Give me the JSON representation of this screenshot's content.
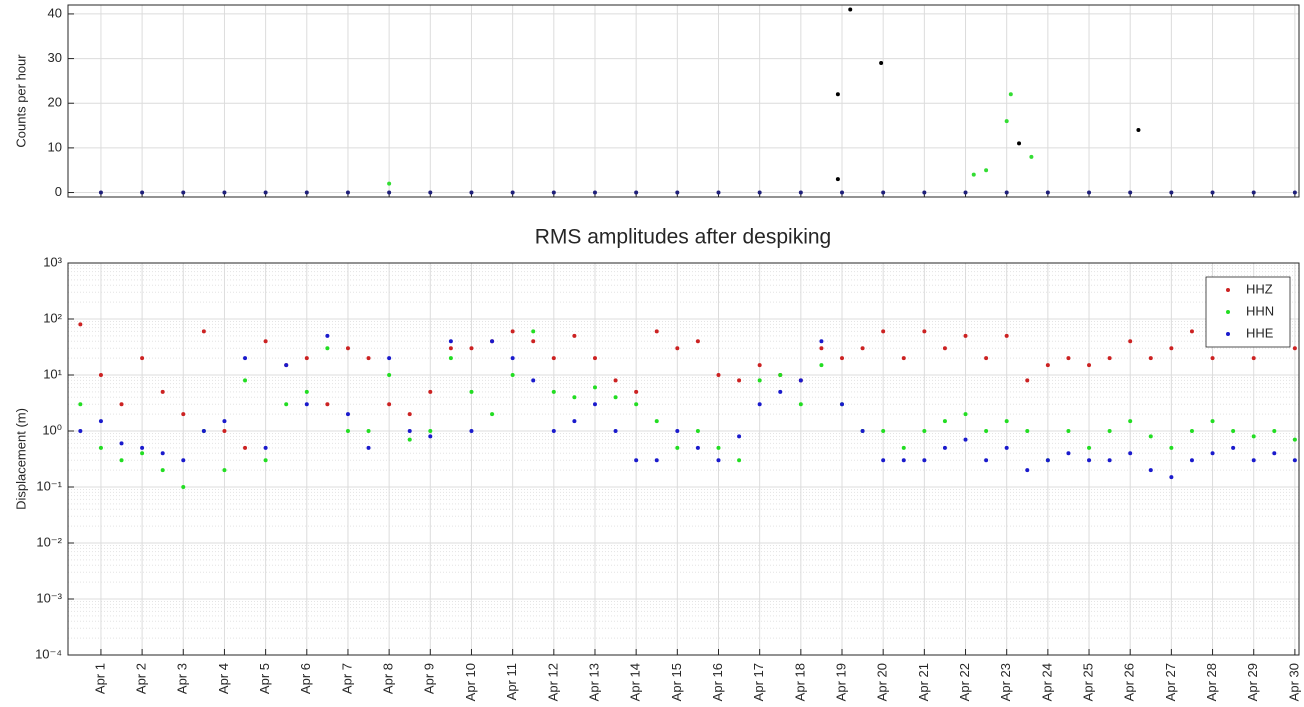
{
  "chart_data": [
    {
      "type": "scatter",
      "ylabel": "Counts per hour",
      "xlim": [
        0.2,
        30.1
      ],
      "ylim": [
        -1,
        42
      ],
      "yticks": [
        0,
        10,
        20,
        30,
        40
      ],
      "grid": true,
      "xticks": [
        1,
        2,
        3,
        4,
        5,
        6,
        7,
        8,
        9,
        10,
        11,
        12,
        13,
        14,
        15,
        16,
        17,
        18,
        19,
        20,
        21,
        22,
        23,
        24,
        25,
        26,
        27,
        28,
        29,
        30
      ],
      "series": [
        {
          "color": "#1f1f7a",
          "x": [
            1,
            2,
            3,
            4,
            5,
            6,
            7,
            8,
            9,
            10,
            11,
            12,
            13,
            14,
            15,
            16,
            17,
            18,
            19,
            20,
            21,
            22,
            23,
            24,
            25,
            26,
            27,
            28,
            29,
            30
          ],
          "values": [
            0,
            0,
            0,
            0,
            0,
            0,
            0,
            0,
            0,
            0,
            0,
            0,
            0,
            0,
            0,
            0,
            0,
            0,
            0,
            0,
            0,
            0,
            0,
            0,
            0,
            0,
            0,
            0,
            0,
            0
          ]
        },
        {
          "color": "#000000",
          "x": [
            18.9,
            19.2,
            19.95,
            26.2,
            23.3,
            18.9
          ],
          "values": [
            22,
            41,
            29,
            14,
            11,
            3
          ]
        },
        {
          "color": "#33dd33",
          "x": [
            23.1,
            23.0,
            22.5,
            23.6,
            22.2,
            8.0
          ],
          "values": [
            22,
            16,
            5,
            8,
            4,
            2
          ]
        }
      ]
    },
    {
      "type": "scatter",
      "title": "RMS amplitudes after despiking",
      "ylabel": "Displacement (m)",
      "log": true,
      "grid": true,
      "minor_grid": true,
      "legend": "upper right",
      "xlim": [
        0.2,
        30.1
      ],
      "ylim": [
        0.0001,
        1000
      ],
      "yticks": [
        {
          "value": 0.0001,
          "label": "10⁻⁴"
        },
        {
          "value": 0.001,
          "label": "10⁻³"
        },
        {
          "value": 0.01,
          "label": "10⁻²"
        },
        {
          "value": 0.1,
          "label": "10⁻¹"
        },
        {
          "value": 1,
          "label": "10⁰"
        },
        {
          "value": 10,
          "label": "10¹"
        },
        {
          "value": 100,
          "label": "10²"
        },
        {
          "value": 1000,
          "label": "10³"
        }
      ],
      "xticks": [
        {
          "value": 1,
          "label": "Apr 1"
        },
        {
          "value": 2,
          "label": "Apr 2"
        },
        {
          "value": 3,
          "label": "Apr 3"
        },
        {
          "value": 4,
          "label": "Apr 4"
        },
        {
          "value": 5,
          "label": "Apr 5"
        },
        {
          "value": 6,
          "label": "Apr 6"
        },
        {
          "value": 7,
          "label": "Apr 7"
        },
        {
          "value": 8,
          "label": "Apr 8"
        },
        {
          "value": 9,
          "label": "Apr 9"
        },
        {
          "value": 10,
          "label": "Apr 10"
        },
        {
          "value": 11,
          "label": "Apr 11"
        },
        {
          "value": 12,
          "label": "Apr 12"
        },
        {
          "value": 13,
          "label": "Apr 13"
        },
        {
          "value": 14,
          "label": "Apr 14"
        },
        {
          "value": 15,
          "label": "Apr 15"
        },
        {
          "value": 16,
          "label": "Apr 16"
        },
        {
          "value": 17,
          "label": "Apr 17"
        },
        {
          "value": 18,
          "label": "Apr 18"
        },
        {
          "value": 19,
          "label": "Apr 19"
        },
        {
          "value": 20,
          "label": "Apr 20"
        },
        {
          "value": 21,
          "label": "Apr 21"
        },
        {
          "value": 22,
          "label": "Apr 22"
        },
        {
          "value": 23,
          "label": "Apr 23"
        },
        {
          "value": 24,
          "label": "Apr 24"
        },
        {
          "value": 25,
          "label": "Apr 25"
        },
        {
          "value": 26,
          "label": "Apr 26"
        },
        {
          "value": 27,
          "label": "Apr 27"
        },
        {
          "value": 28,
          "label": "Apr 28"
        },
        {
          "value": 29,
          "label": "Apr 29"
        },
        {
          "value": 30,
          "label": "Apr 30"
        }
      ],
      "x": [
        0.5,
        1,
        1.5,
        2,
        2.5,
        3,
        3.5,
        4,
        4.5,
        5,
        5.5,
        6,
        6.5,
        7,
        7.5,
        8,
        8.5,
        9,
        9.5,
        10,
        10.5,
        11,
        11.5,
        12,
        12.5,
        13,
        13.5,
        14,
        14.5,
        15,
        15.5,
        16,
        16.5,
        17,
        17.5,
        18,
        18.5,
        19,
        19.5,
        20,
        20.5,
        21,
        21.5,
        22,
        22.5,
        23,
        23.5,
        24,
        24.5,
        25,
        25.5,
        26,
        26.5,
        27,
        27.5,
        28,
        28.5,
        29,
        29.5,
        30
      ],
      "series": [
        {
          "name": "HHZ",
          "color": "#cc2222",
          "values": [
            80,
            10,
            3,
            20,
            5,
            2,
            60,
            1,
            0.5,
            40,
            15,
            20,
            3,
            30,
            20,
            3,
            2,
            5,
            30,
            30,
            40,
            60,
            40,
            20,
            50,
            20,
            8,
            5,
            60,
            30,
            40,
            10,
            8,
            15,
            10,
            8,
            30,
            20,
            30,
            60,
            20,
            60,
            30,
            50,
            20,
            50,
            8,
            15,
            20,
            15,
            20,
            40,
            20,
            30,
            60,
            20,
            50,
            20,
            50,
            30
          ]
        },
        {
          "name": "HHN",
          "color": "#22dd22",
          "values": [
            3,
            0.5,
            0.3,
            0.4,
            0.2,
            0.1,
            1,
            0.2,
            8,
            0.3,
            3,
            5,
            30,
            1,
            1,
            10,
            0.7,
            1,
            20,
            5,
            2,
            10,
            60,
            5,
            4,
            6,
            4,
            3,
            1.5,
            0.5,
            1,
            0.5,
            0.3,
            8,
            10,
            3,
            15,
            3,
            1,
            1,
            0.5,
            1,
            1.5,
            2,
            1,
            1.5,
            1,
            0.3,
            1,
            0.5,
            1,
            1.5,
            0.8,
            0.5,
            1,
            1.5,
            1,
            0.8,
            1,
            0.7
          ]
        },
        {
          "name": "HHE",
          "color": "#1a1acc",
          "values": [
            1,
            1.5,
            0.6,
            0.5,
            0.4,
            0.3,
            1,
            1.5,
            20,
            0.5,
            15,
            3,
            50,
            2,
            0.5,
            20,
            1,
            0.8,
            40,
            1,
            40,
            20,
            8,
            1,
            1.5,
            3,
            1,
            0.3,
            0.3,
            1,
            0.5,
            0.3,
            0.8,
            3,
            5,
            8,
            40,
            3,
            1,
            0.3,
            0.3,
            0.3,
            0.5,
            0.7,
            0.3,
            0.5,
            0.2,
            0.3,
            0.4,
            0.3,
            0.3,
            0.4,
            0.2,
            0.15,
            0.3,
            0.4,
            0.5,
            0.3,
            0.4,
            0.3
          ]
        }
      ]
    }
  ]
}
